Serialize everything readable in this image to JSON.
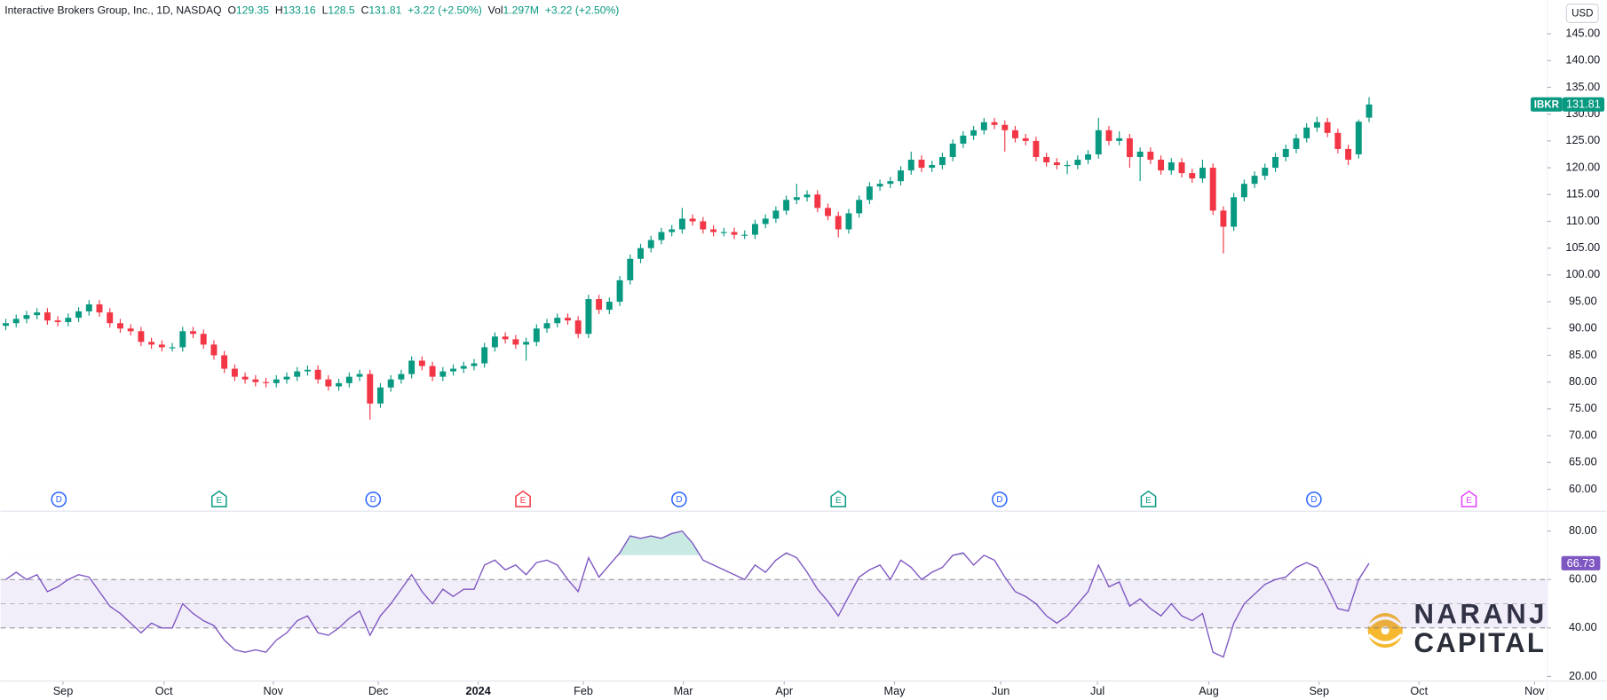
{
  "header": {
    "title": "Interactive Brokers Group, Inc., 1D, NASDAQ",
    "ohlc_labels": [
      "O",
      "H",
      "L",
      "C"
    ],
    "change": "+3.22 (+2.50%)",
    "volume_label": "Vol",
    "volume": "1.297M",
    "currency": "USD",
    "watermark": [
      "NARANJ",
      "CAPITAL"
    ]
  },
  "chart_data": [
    {
      "type": "candlestick",
      "xlim": [
        -0.5,
        148.1
      ],
      "ylim": [
        56.2,
        151.3
      ],
      "grid": false,
      "colors": {
        "up": "#089981",
        "down": "#f23645"
      },
      "yticks": [
        {
          "value": 60,
          "label": "60.00"
        },
        {
          "value": 65,
          "label": "65.00"
        },
        {
          "value": 70,
          "label": "70.00"
        },
        {
          "value": 75,
          "label": "75.00"
        },
        {
          "value": 80,
          "label": "80.00"
        },
        {
          "value": 85,
          "label": "85.00"
        },
        {
          "value": 90,
          "label": "90.00"
        },
        {
          "value": 95,
          "label": "95.00"
        },
        {
          "value": 100,
          "label": "100.00"
        },
        {
          "value": 105,
          "label": "105.00"
        },
        {
          "value": 110,
          "label": "110.00"
        },
        {
          "value": 115,
          "label": "115.00"
        },
        {
          "value": 120,
          "label": "120.00"
        },
        {
          "value": 125,
          "label": "125.00"
        },
        {
          "value": 130,
          "label": "130.00"
        },
        {
          "value": 135,
          "label": "135.00"
        },
        {
          "value": 140,
          "label": "140.00"
        },
        {
          "value": 145,
          "label": "145.00"
        }
      ],
      "series": [
        {
          "name": "IBKR",
          "open": [
            90.5,
            91.0,
            91.8,
            92.5,
            93.0,
            91.5,
            91.2,
            92.0,
            93.2,
            94.5,
            93.0,
            91.0,
            90.0,
            89.5,
            87.5,
            87.0,
            86.5,
            86.5,
            89.5,
            89.0,
            87.0,
            85.0,
            82.5,
            81.0,
            80.5,
            80.0,
            79.8,
            80.5,
            81.0,
            82.0,
            82.3,
            80.5,
            79.2,
            79.8,
            81.0,
            81.5,
            76.0,
            79.0,
            80.5,
            81.5,
            84.0,
            83.0,
            81.0,
            82.0,
            82.5,
            83.0,
            83.5,
            86.5,
            88.5,
            88.0,
            87.0,
            87.5,
            90.0,
            91.0,
            92.0,
            91.5,
            89.0,
            95.5,
            93.5,
            95.0,
            99.0,
            103.0,
            105.0,
            106.5,
            108.0,
            108.5,
            110.5,
            110.0,
            108.5,
            108.0,
            108.0,
            107.5,
            107.5,
            109.5,
            110.5,
            112.0,
            114.0,
            114.5,
            115.0,
            112.5,
            111.0,
            108.5,
            111.5,
            114.0,
            116.5,
            117.0,
            117.5,
            119.5,
            121.5,
            120.0,
            120.5,
            122.0,
            124.5,
            126.0,
            127.0,
            128.5,
            128.0,
            127.0,
            125.5,
            125.0,
            122.0,
            121.0,
            120.5,
            120.5,
            121.5,
            122.5,
            127.0,
            125.0,
            125.5,
            122.0,
            123.0,
            121.5,
            119.5,
            121.0,
            119.0,
            118.0,
            120.0,
            112.0,
            109.0,
            114.5,
            117.0,
            118.5,
            120.0,
            122.0,
            123.5,
            125.5,
            127.5,
            128.5,
            126.5,
            123.5,
            122.5,
            129.35
          ],
          "high": [
            91.8,
            92.6,
            93.3,
            93.8,
            93.8,
            92.3,
            92.8,
            94.0,
            95.3,
            95.3,
            93.8,
            91.8,
            90.8,
            90.3,
            88.3,
            87.8,
            87.3,
            90.3,
            90.3,
            89.8,
            87.8,
            85.8,
            83.3,
            81.8,
            81.3,
            80.8,
            81.3,
            81.8,
            82.8,
            83.1,
            83.1,
            81.3,
            80.6,
            81.8,
            82.3,
            82.3,
            79.8,
            81.3,
            82.3,
            84.8,
            84.8,
            83.8,
            82.8,
            83.3,
            83.8,
            84.3,
            87.3,
            89.3,
            89.3,
            88.8,
            88.3,
            90.8,
            91.8,
            92.8,
            92.8,
            92.3,
            96.3,
            96.3,
            95.8,
            99.8,
            103.8,
            105.8,
            107.3,
            108.8,
            109.3,
            112.5,
            111.3,
            110.8,
            109.3,
            108.8,
            108.8,
            108.3,
            110.3,
            111.3,
            112.8,
            114.8,
            117.0,
            115.8,
            115.8,
            113.3,
            111.8,
            112.3,
            114.8,
            117.3,
            117.8,
            118.3,
            120.3,
            123.0,
            122.3,
            121.3,
            122.8,
            125.3,
            126.8,
            127.8,
            129.3,
            129.3,
            128.8,
            127.8,
            126.3,
            125.8,
            122.8,
            121.8,
            121.3,
            122.3,
            123.3,
            129.3,
            127.8,
            126.8,
            126.3,
            123.8,
            123.8,
            122.3,
            121.8,
            121.8,
            119.8,
            121.5,
            120.8,
            112.8,
            115.3,
            117.8,
            119.3,
            120.8,
            122.8,
            124.3,
            126.3,
            128.3,
            129.5,
            129.3,
            127.3,
            124.3,
            129.0,
            133.16
          ],
          "low": [
            89.7,
            90.2,
            91.0,
            91.7,
            90.7,
            90.4,
            90.4,
            91.2,
            92.4,
            92.2,
            90.2,
            89.2,
            88.7,
            86.7,
            86.2,
            85.7,
            85.7,
            85.7,
            88.2,
            86.2,
            84.2,
            81.7,
            80.2,
            79.7,
            79.2,
            79.0,
            79.0,
            79.7,
            80.2,
            81.2,
            79.7,
            78.4,
            78.4,
            79.0,
            80.2,
            73.0,
            75.2,
            78.2,
            79.7,
            80.7,
            82.2,
            80.2,
            80.2,
            81.2,
            81.7,
            82.2,
            82.7,
            85.7,
            87.2,
            86.2,
            84.0,
            86.7,
            89.2,
            90.2,
            90.7,
            88.2,
            88.2,
            92.7,
            92.7,
            94.2,
            98.2,
            102.2,
            104.2,
            105.7,
            107.2,
            107.7,
            109.2,
            107.7,
            107.2,
            107.2,
            106.7,
            106.7,
            106.7,
            108.7,
            109.7,
            111.2,
            113.2,
            113.7,
            111.7,
            110.2,
            107.0,
            107.7,
            110.7,
            113.2,
            115.7,
            116.2,
            116.7,
            118.7,
            119.2,
            119.2,
            119.7,
            121.2,
            123.7,
            125.2,
            126.2,
            127.2,
            123.0,
            124.7,
            124.2,
            121.2,
            120.2,
            119.7,
            118.8,
            119.7,
            120.7,
            121.7,
            124.2,
            124.2,
            120.0,
            117.5,
            120.7,
            118.7,
            118.7,
            118.2,
            117.2,
            117.2,
            111.2,
            104.0,
            108.2,
            113.7,
            116.2,
            117.7,
            119.2,
            121.2,
            122.7,
            124.7,
            126.7,
            125.7,
            122.7,
            120.5,
            121.7,
            128.5
          ],
          "close": [
            91.0,
            91.8,
            92.5,
            93.0,
            91.5,
            91.2,
            92.0,
            93.2,
            94.5,
            93.0,
            91.0,
            90.0,
            89.5,
            87.5,
            87.0,
            86.5,
            86.5,
            89.5,
            89.0,
            87.0,
            85.0,
            82.5,
            81.0,
            80.5,
            80.0,
            79.8,
            80.5,
            81.0,
            82.0,
            82.3,
            80.5,
            79.2,
            79.8,
            81.0,
            81.5,
            76.0,
            79.0,
            80.5,
            81.5,
            84.0,
            83.0,
            81.0,
            82.0,
            82.5,
            83.0,
            83.5,
            86.5,
            88.5,
            88.0,
            87.0,
            87.5,
            90.0,
            91.0,
            92.0,
            91.5,
            89.0,
            95.5,
            93.5,
            95.0,
            99.0,
            103.0,
            105.0,
            106.5,
            108.0,
            108.5,
            110.5,
            110.0,
            108.5,
            108.0,
            108.0,
            107.5,
            107.5,
            109.5,
            110.5,
            112.0,
            114.0,
            114.5,
            115.0,
            112.5,
            111.0,
            108.5,
            111.5,
            114.0,
            116.5,
            117.0,
            117.5,
            119.5,
            121.5,
            120.0,
            120.5,
            122.0,
            124.5,
            126.0,
            127.0,
            128.5,
            128.0,
            127.0,
            125.5,
            125.0,
            122.0,
            121.0,
            120.5,
            120.5,
            121.5,
            122.5,
            127.0,
            125.0,
            125.5,
            122.0,
            123.0,
            121.5,
            119.5,
            121.0,
            119.0,
            118.0,
            120.0,
            112.0,
            109.0,
            114.5,
            117.0,
            118.5,
            120.0,
            122.0,
            123.5,
            125.5,
            127.5,
            128.5,
            126.5,
            123.5,
            121.5,
            128.59,
            131.81
          ]
        }
      ],
      "events": [
        {
          "label": "D",
          "x": 5.1,
          "color": "#2962ff"
        },
        {
          "label": "E",
          "x": 20.5,
          "color": "#089981"
        },
        {
          "label": "D",
          "x": 35.3,
          "color": "#2962ff"
        },
        {
          "label": "E",
          "x": 49.7,
          "color": "#f23645"
        },
        {
          "label": "D",
          "x": 64.7,
          "color": "#2962ff"
        },
        {
          "label": "E",
          "x": 80.0,
          "color": "#089981"
        },
        {
          "label": "D",
          "x": 95.5,
          "color": "#2962ff"
        },
        {
          "label": "E",
          "x": 109.8,
          "color": "#089981"
        },
        {
          "label": "D",
          "x": 125.7,
          "color": "#2962ff"
        },
        {
          "label": "E",
          "x": 140.6,
          "color": "#e040fb"
        }
      ]
    },
    {
      "type": "line",
      "xlim": [
        -0.5,
        148.1
      ],
      "ylim": [
        18.3,
        88
      ],
      "grid": false,
      "band": [
        40,
        60
      ],
      "midline": 50,
      "overbought": 70,
      "yticks": [
        {
          "value": 20,
          "label": "20.00"
        },
        {
          "value": 40,
          "label": "40.00"
        },
        {
          "value": 60,
          "label": "60.00"
        },
        {
          "value": 80,
          "label": "80.00"
        }
      ],
      "xticks": [
        {
          "value": 5.5,
          "label": "Sep"
        },
        {
          "value": 15.2,
          "label": "Oct"
        },
        {
          "value": 25.7,
          "label": "Nov"
        },
        {
          "value": 35.8,
          "label": "Dec"
        },
        {
          "value": 45.4,
          "label": "2024"
        },
        {
          "value": 55.5,
          "label": "Feb"
        },
        {
          "value": 65.1,
          "label": "Mar"
        },
        {
          "value": 74.8,
          "label": "Apr"
        },
        {
          "value": 85.4,
          "label": "May"
        },
        {
          "value": 95.6,
          "label": "Jun"
        },
        {
          "value": 104.9,
          "label": "Jul"
        },
        {
          "value": 115.6,
          "label": "Aug"
        },
        {
          "value": 126.2,
          "label": "Sep"
        },
        {
          "value": 135.8,
          "label": "Oct"
        },
        {
          "value": 146.9,
          "label": "Nov"
        }
      ],
      "series": [
        {
          "color": "#7e57c2",
          "values": [
            60,
            63,
            60,
            62,
            55,
            57,
            60,
            62,
            61,
            55,
            49,
            46,
            42,
            38,
            42,
            40,
            40,
            50,
            46,
            43,
            41,
            35,
            31,
            30,
            31,
            30,
            35,
            38,
            43,
            45,
            38,
            37,
            40,
            44,
            47,
            37,
            45,
            50,
            56,
            62,
            55,
            50,
            56,
            53,
            56,
            56,
            66,
            68,
            64,
            66,
            62,
            67,
            68,
            66,
            60,
            55,
            69,
            61,
            66,
            71,
            78,
            77,
            78,
            77,
            79,
            80,
            75,
            68,
            66,
            64,
            62,
            60,
            66,
            63,
            68,
            71,
            69,
            63,
            56,
            51,
            45,
            53,
            61,
            64,
            66,
            60,
            68,
            65,
            60,
            63,
            65,
            70,
            71,
            66,
            70,
            68,
            61,
            55,
            53,
            50,
            45,
            42,
            45,
            50,
            55,
            66,
            57,
            59,
            49,
            52,
            48,
            45,
            50,
            45,
            43,
            46,
            30,
            28,
            42,
            50,
            54,
            58,
            60,
            61,
            65,
            67,
            65,
            57,
            48,
            47,
            60,
            66.73
          ]
        }
      ]
    }
  ]
}
